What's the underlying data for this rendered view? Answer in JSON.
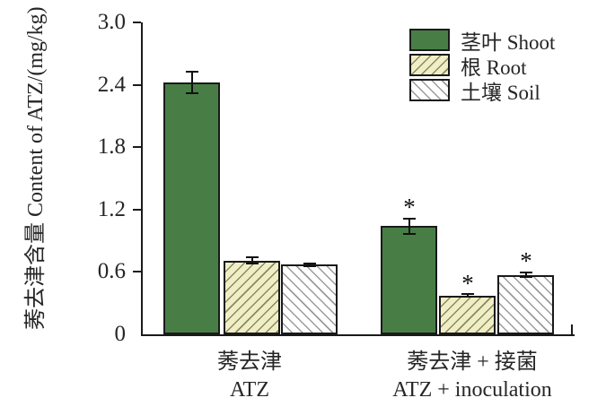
{
  "chart_data": {
    "type": "bar",
    "title": "",
    "ylabel_zh": "莠去津含量",
    "ylabel_en": "Content of ATZ/(mg/kg)",
    "ylim": [
      0,
      3.0
    ],
    "yticks": [
      {
        "value": 0,
        "label": "0"
      },
      {
        "value": 0.6,
        "label": "0.6"
      },
      {
        "value": 1.2,
        "label": "1.2"
      },
      {
        "value": 1.8,
        "label": "1.8"
      },
      {
        "value": 2.4,
        "label": "2.4"
      },
      {
        "value": 3.0,
        "label": "3.0"
      }
    ],
    "grid": false,
    "legend_position": "top-right-inside",
    "categories": [
      {
        "label_zh": "莠去津",
        "label_en": "ATZ"
      },
      {
        "label_zh": "莠去津 + 接菌",
        "label_en": "ATZ + inoculation"
      }
    ],
    "series": [
      {
        "legend_label": "茎叶 Shoot",
        "fill": "#487e46",
        "hatch": "none",
        "hatch_color": "",
        "values": [
          2.42,
          1.04
        ],
        "errors": [
          0.11,
          0.08
        ],
        "significance": [
          "",
          "*"
        ]
      },
      {
        "legend_label": "根 Root",
        "fill": "#f0eec6",
        "hatch": "forward-diagonal",
        "hatch_color": "#8a8a5c",
        "values": [
          0.71,
          0.37
        ],
        "errors": [
          0.04,
          0.02
        ],
        "significance": [
          "",
          "*"
        ]
      },
      {
        "legend_label": "土壤 Soil",
        "fill": "#ffffff",
        "hatch": "backward-diagonal",
        "hatch_color": "#9b9b9b",
        "values": [
          0.67,
          0.57
        ],
        "errors": [
          0.02,
          0.03
        ],
        "significance": [
          "",
          "*"
        ]
      }
    ],
    "colors": {
      "axis": "#1a1a1a",
      "text": "#262626",
      "error_bar": "#111111"
    }
  }
}
